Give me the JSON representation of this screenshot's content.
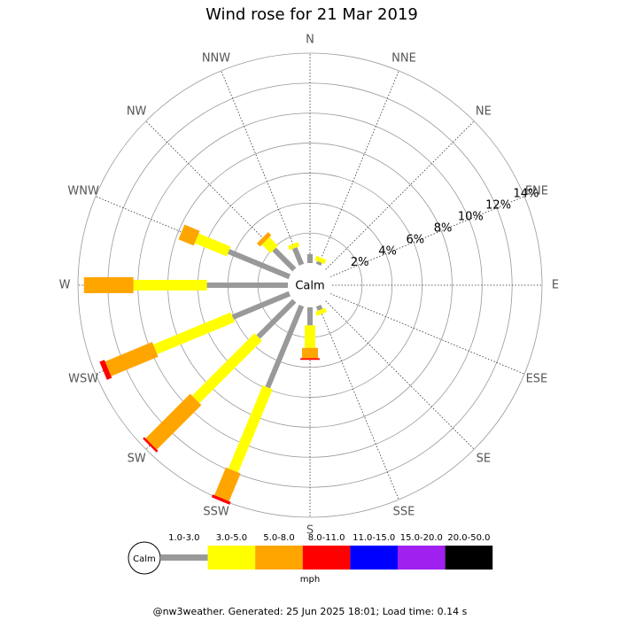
{
  "chart_data": {
    "type": "windrose",
    "title": "Wind rose for 21 Mar 2019",
    "categories": [
      "N",
      "NNE",
      "NE",
      "ENE",
      "E",
      "ESE",
      "SE",
      "SSE",
      "S",
      "SSW",
      "SW",
      "WSW",
      "W",
      "WNW",
      "NW",
      "NNW"
    ],
    "center_label": "Calm",
    "series": [
      {
        "name": "1.0-3.0",
        "color": "#999999",
        "values": [
          0.6,
          0.2,
          0,
          0,
          0,
          0,
          0,
          0.3,
          1.2,
          5.9,
          3.4,
          4.1,
          5.4,
          4.4,
          1.9,
          1.2
        ]
      },
      {
        "name": "3.0-5.0",
        "color": "#ffff00",
        "values": [
          0,
          0.3,
          0,
          0,
          0,
          0,
          0,
          0.3,
          1.5,
          6.0,
          5.9,
          5.6,
          4.9,
          2.3,
          0.8,
          0.3
        ]
      },
      {
        "name": "5.0-8.0",
        "color": "#ffa500",
        "values": [
          0,
          0,
          0,
          0,
          0,
          0,
          0,
          0,
          0.7,
          2.0,
          4.2,
          3.4,
          3.3,
          1.1,
          0.3,
          0
        ]
      },
      {
        "name": "8.0-11.0",
        "color": "#ff0000",
        "values": [
          0,
          0,
          0,
          0,
          0,
          0,
          0,
          0,
          0.1,
          0.2,
          0.15,
          0.35,
          0,
          0,
          0,
          0
        ]
      },
      {
        "name": "11.0-15.0",
        "color": "#0000ff",
        "values": [
          0,
          0,
          0,
          0,
          0,
          0,
          0,
          0,
          0,
          0,
          0,
          0,
          0,
          0,
          0,
          0
        ]
      },
      {
        "name": "15.0-20.0",
        "color": "#a020f0",
        "values": [
          0,
          0,
          0,
          0,
          0,
          0,
          0,
          0,
          0,
          0,
          0,
          0,
          0,
          0,
          0,
          0
        ]
      },
      {
        "name": "20.0-50.0",
        "color": "#000000",
        "values": [
          0,
          0,
          0,
          0,
          0,
          0,
          0,
          0,
          0,
          0,
          0,
          0,
          0,
          0,
          0,
          0
        ]
      }
    ],
    "ylim": [
      0,
      14
    ],
    "yticks": [
      {
        "value": 2,
        "label": "2%"
      },
      {
        "value": 4,
        "label": "4%"
      },
      {
        "value": 6,
        "label": "6%"
      },
      {
        "value": 8,
        "label": "8%"
      },
      {
        "value": 10,
        "label": "10%"
      },
      {
        "value": 12,
        "label": "12%"
      },
      {
        "value": 14,
        "label": "14%"
      }
    ],
    "legend_unit": "mph",
    "footer": "@nw3weather. Generated: 25 Jun 2025 18:01; Load time: 0.14 s"
  }
}
